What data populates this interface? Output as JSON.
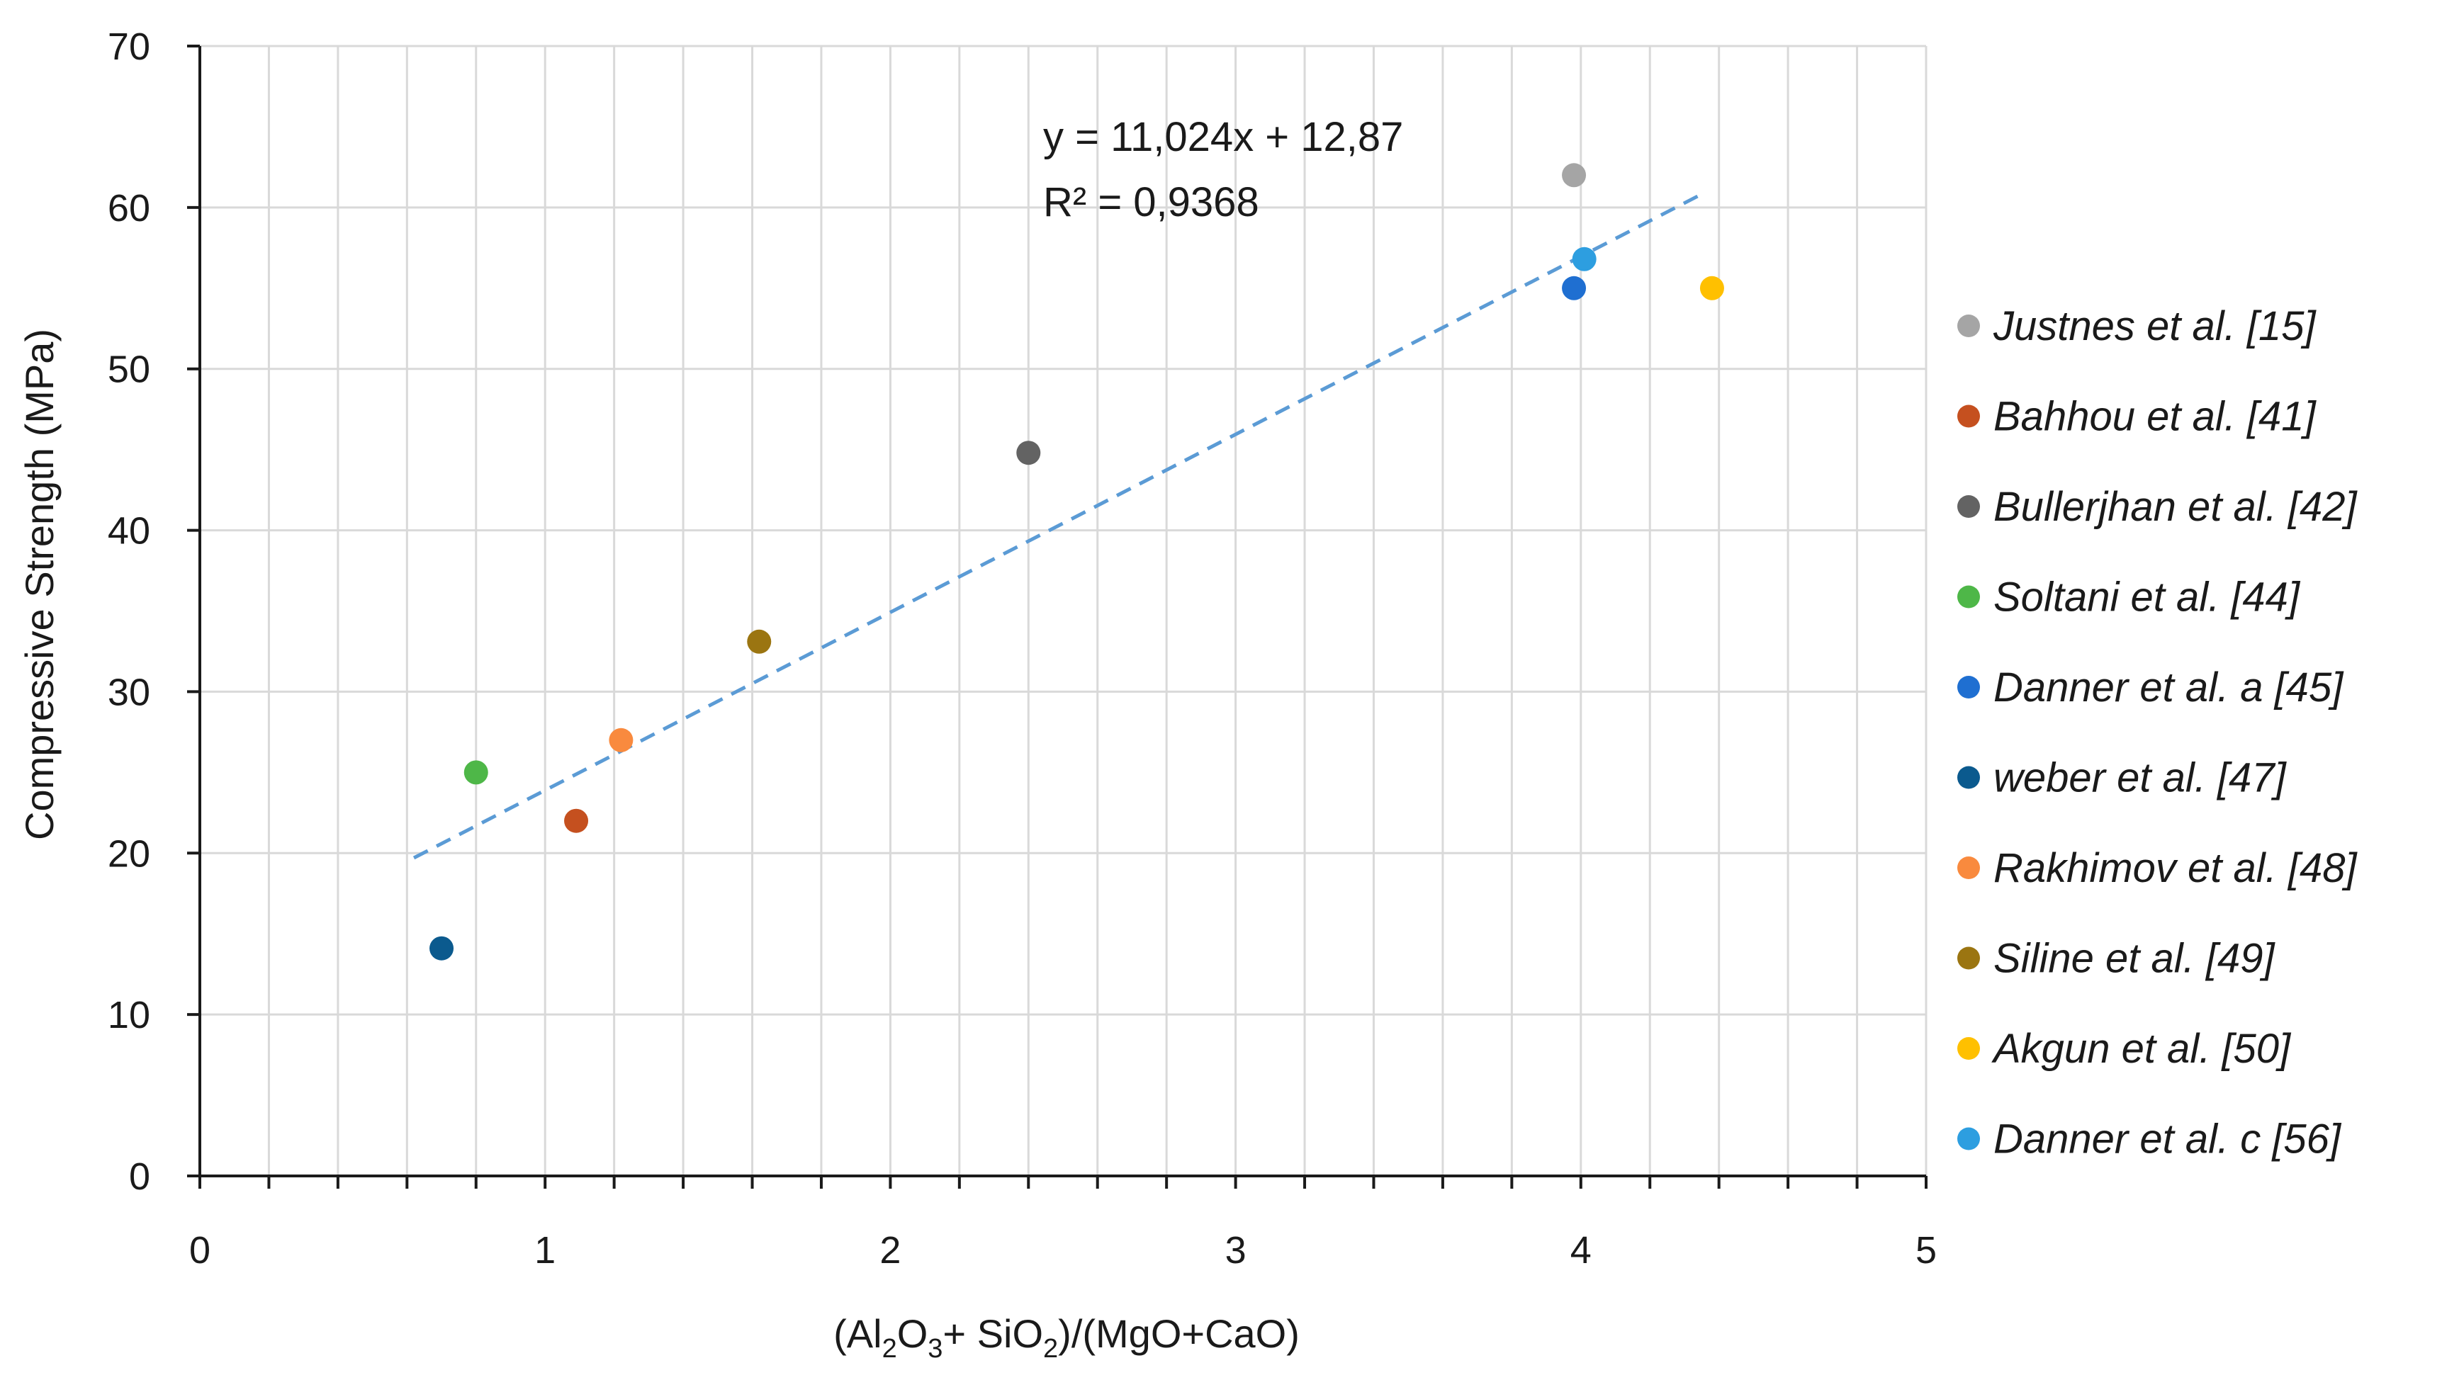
{
  "chart_data": {
    "type": "scatter",
    "title": "",
    "xlabel": {
      "prefix": "(Al",
      "sub1": "2",
      "mid1": "O",
      "sub2": "3",
      "mid2": "+ SiO",
      "sub3": "2",
      "suffix": ")/(MgO+CaO)"
    },
    "ylabel": "Compressive Strength (MPa)",
    "xlim": [
      0,
      5
    ],
    "ylim": [
      0,
      70
    ],
    "xticks": [
      0,
      1,
      2,
      3,
      4,
      5
    ],
    "yticks": [
      0,
      10,
      20,
      30,
      40,
      50,
      60,
      70
    ],
    "x_minor_step": 0.2,
    "grid": true,
    "legend_position": "right",
    "series": [
      {
        "name": "Justnes et al. [15]",
        "color": "#a5a5a5",
        "points": [
          {
            "x": 3.98,
            "y": 62.0
          }
        ]
      },
      {
        "name": "Bahhou et al. [41]",
        "color": "#c5501f",
        "points": [
          {
            "x": 1.09,
            "y": 22.0
          }
        ]
      },
      {
        "name": "Bullerjhan et al.  [42]",
        "color": "#636363",
        "points": [
          {
            "x": 2.4,
            "y": 44.8
          }
        ]
      },
      {
        "name": "Soltani et al. [44]",
        "color": "#4eb748",
        "points": [
          {
            "x": 0.8,
            "y": 25.0
          }
        ]
      },
      {
        "name": "Danner et al. a [45]",
        "color": "#1f6fd1",
        "points": [
          {
            "x": 3.98,
            "y": 55.0
          }
        ]
      },
      {
        "name": "weber et al. [47]",
        "color": "#0b5a8e",
        "points": [
          {
            "x": 0.7,
            "y": 14.1
          }
        ]
      },
      {
        "name": "Rakhimov et al. [48]",
        "color": "#f98a3e",
        "points": [
          {
            "x": 1.22,
            "y": 27.0
          }
        ]
      },
      {
        "name": "Siline et al. [49]",
        "color": "#9b7511",
        "points": [
          {
            "x": 1.62,
            "y": 33.1
          }
        ]
      },
      {
        "name": "Akgun et al. [50]",
        "color": "#ffc000",
        "points": [
          {
            "x": 4.38,
            "y": 55.0
          }
        ]
      },
      {
        "name": "Danner et al. c [56]",
        "color": "#2d9ee0",
        "points": [
          {
            "x": 4.01,
            "y": 56.8
          }
        ]
      }
    ],
    "trendline": {
      "slope": 11.024,
      "intercept": 12.87,
      "x_start": 0.62,
      "x_end": 4.35,
      "color": "#5b9bd5",
      "equation": "y = 11,024x + 12,87",
      "r2": "R² = 0,9368"
    }
  }
}
